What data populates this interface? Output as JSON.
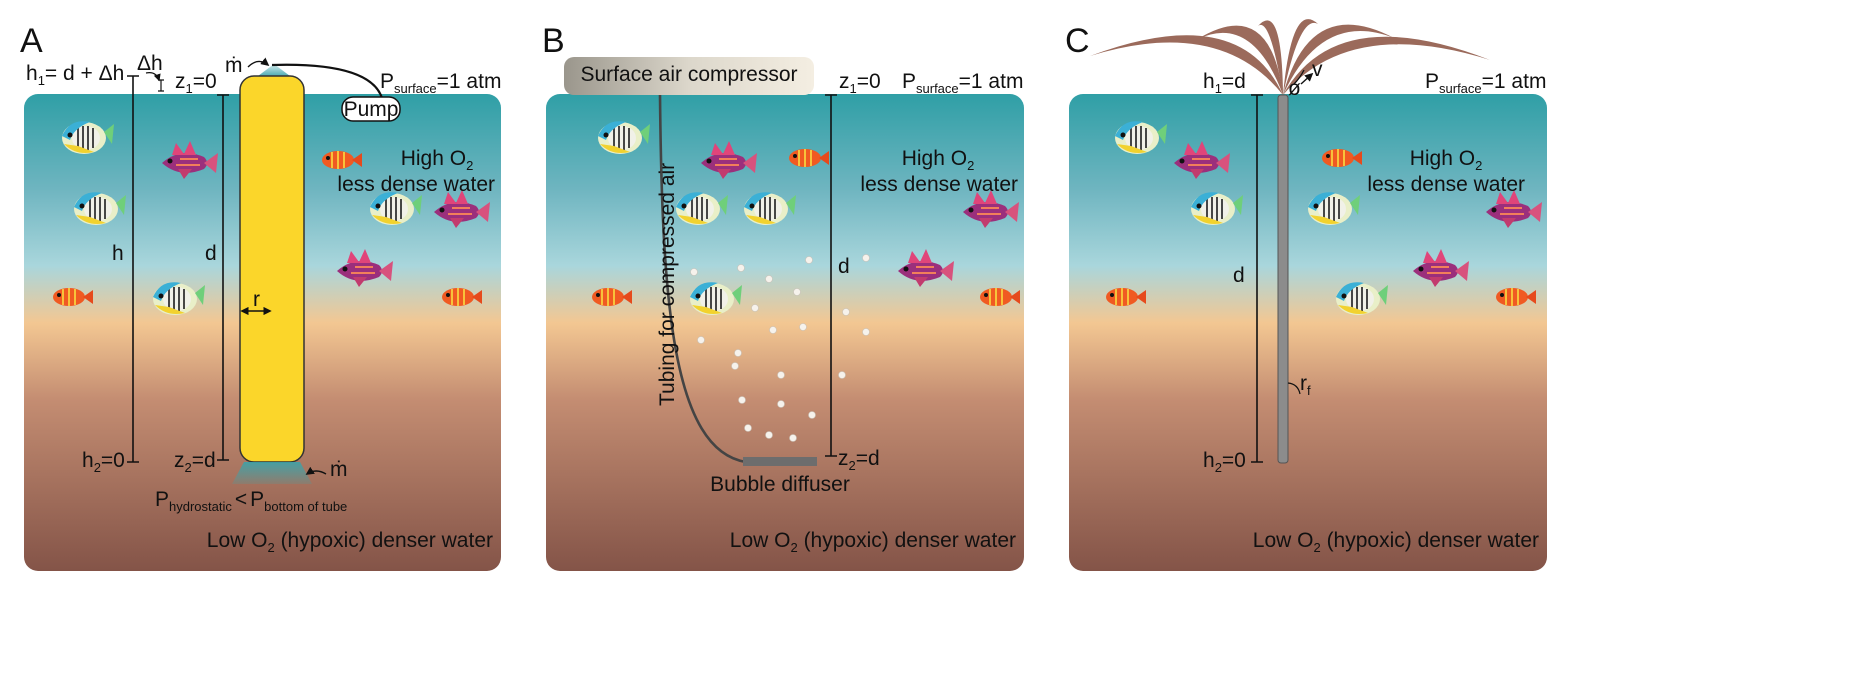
{
  "colors": {
    "water_top": "#2f9fa6",
    "water_mid": "#9fd0d6",
    "water_warm": "#f0c48e",
    "water_bottom": "#8e5a4e",
    "tube": "#fbd62a",
    "pipe": "#8c8c8c",
    "fountain": "#9b6a5b"
  },
  "panels": {
    "a": {
      "letter": "A",
      "h1": {
        "main": "h",
        "sub": "1",
        "rest": "= d + Δh"
      },
      "delta_h": "Δh",
      "z1": {
        "main": "z",
        "sub": "1",
        "rest": "=0"
      },
      "mdot_top": "ṁ",
      "pump": "Pump",
      "p_surface": {
        "main": "P",
        "sub": "surface",
        "rest": "=1 atm"
      },
      "high_o2": {
        "main": "High O",
        "sub": "2"
      },
      "less_dense": "less dense water",
      "h": "h",
      "d": "d",
      "r": "r",
      "h2": {
        "main": "h",
        "sub": "2",
        "rest": "=0"
      },
      "z2": {
        "main": "z",
        "sub": "2",
        "rest": "=d"
      },
      "mdot_bottom": "ṁ",
      "hydro_p1": "P",
      "hydro_s1": "hydrostatic",
      "hydro_lt": "<",
      "hydro_p2": "P",
      "hydro_s2": "bottom of tube",
      "low_o2": {
        "main": "Low O",
        "sub": "2",
        "rest": " (hypoxic) denser water"
      }
    },
    "b": {
      "letter": "B",
      "compressor": "Surface air compressor",
      "z1": {
        "main": "z",
        "sub": "1",
        "rest": "=0"
      },
      "p_surface": {
        "main": "P",
        "sub": "surface",
        "rest": "=1 atm"
      },
      "high_o2": {
        "main": "High O",
        "sub": "2"
      },
      "less_dense": "less dense water",
      "tubing": "Tubing for compressed air",
      "d": "d",
      "z2": {
        "main": "z",
        "sub": "2",
        "rest": "=d"
      },
      "diffuser": "Bubble diffuser",
      "low_o2": {
        "main": "Low O",
        "sub": "2",
        "rest": " (hypoxic) denser water"
      }
    },
    "c": {
      "letter": "C",
      "h1": {
        "main": "h",
        "sub": "1",
        "rest": "=d"
      },
      "phi": "ø",
      "v": "v",
      "p_surface": {
        "main": "P",
        "sub": "surface",
        "rest": "=1 atm"
      },
      "high_o2": {
        "main": "High O",
        "sub": "2"
      },
      "less_dense": "less dense water",
      "d": "d",
      "rf": {
        "main": "r",
        "sub": "f"
      },
      "h2": {
        "main": "h",
        "sub": "2",
        "rest": "=0"
      },
      "low_o2": {
        "main": "Low O",
        "sub": "2",
        "rest": " (hypoxic) denser water"
      }
    }
  }
}
